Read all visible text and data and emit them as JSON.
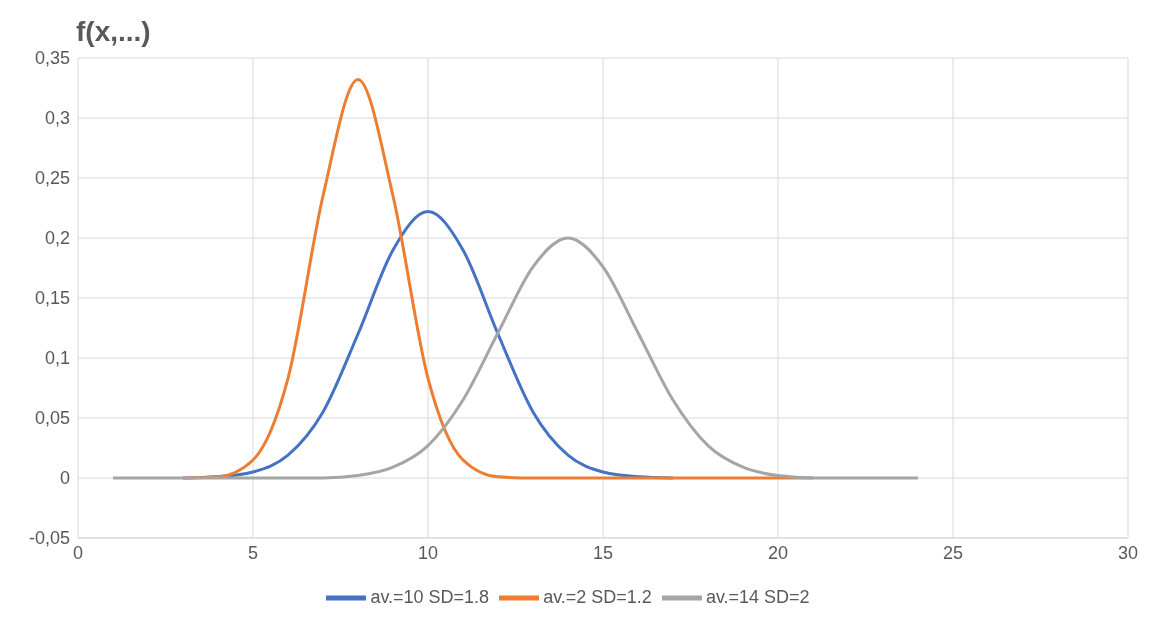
{
  "chart_data": {
    "type": "line",
    "ylabel": "f(x,...)",
    "x": [
      1,
      2,
      3,
      4,
      5,
      6,
      7,
      8,
      9,
      10,
      11,
      12,
      13,
      14,
      15,
      16,
      17,
      18,
      19,
      20,
      21,
      22,
      23,
      24
    ],
    "series": [
      {
        "name": "av.=10 SD=1.8",
        "color": "#4472c4",
        "values": [
          null,
          null,
          0,
          0.001,
          0.005,
          0.019,
          0.055,
          0.12,
          0.19,
          0.222,
          0.19,
          0.12,
          0.055,
          0.019,
          0.005,
          0.001,
          0,
          null,
          null,
          null,
          null,
          null,
          null,
          null
        ]
      },
      {
        "name": "av.=2 SD=1.2",
        "color": "#ed7d31",
        "values": [
          null,
          null,
          0,
          0.001,
          0.015,
          0.083,
          0.235,
          0.332,
          0.235,
          0.083,
          0.015,
          0.001,
          0,
          0,
          0,
          0,
          0,
          0,
          0,
          0,
          0,
          null,
          null,
          null
        ]
      },
      {
        "name": "av.=14 SD=2",
        "color": "#a5a5a5",
        "values": [
          0,
          0,
          0,
          0,
          0,
          0,
          0,
          0.002,
          0.009,
          0.027,
          0.065,
          0.121,
          0.176,
          0.2,
          0.176,
          0.121,
          0.065,
          0.027,
          0.009,
          0.002,
          0,
          0,
          0,
          0
        ]
      }
    ],
    "xlim": [
      0,
      30
    ],
    "xticks": [
      0,
      5,
      10,
      15,
      20,
      25,
      30
    ],
    "ylim": [
      -0.05,
      0.35
    ],
    "yticks": [
      {
        "value": -0.05,
        "label": "-0,05"
      },
      {
        "value": 0,
        "label": "0"
      },
      {
        "value": 0.05,
        "label": "0,05"
      },
      {
        "value": 0.1,
        "label": "0,1"
      },
      {
        "value": 0.15,
        "label": "0,15"
      },
      {
        "value": 0.2,
        "label": "0,2"
      },
      {
        "value": 0.25,
        "label": "0,25"
      },
      {
        "value": 0.3,
        "label": "0,3"
      },
      {
        "value": 0.35,
        "label": "0,35"
      }
    ],
    "grid": true,
    "legend": "bottom",
    "marker": "none",
    "line_style": "solid"
  }
}
